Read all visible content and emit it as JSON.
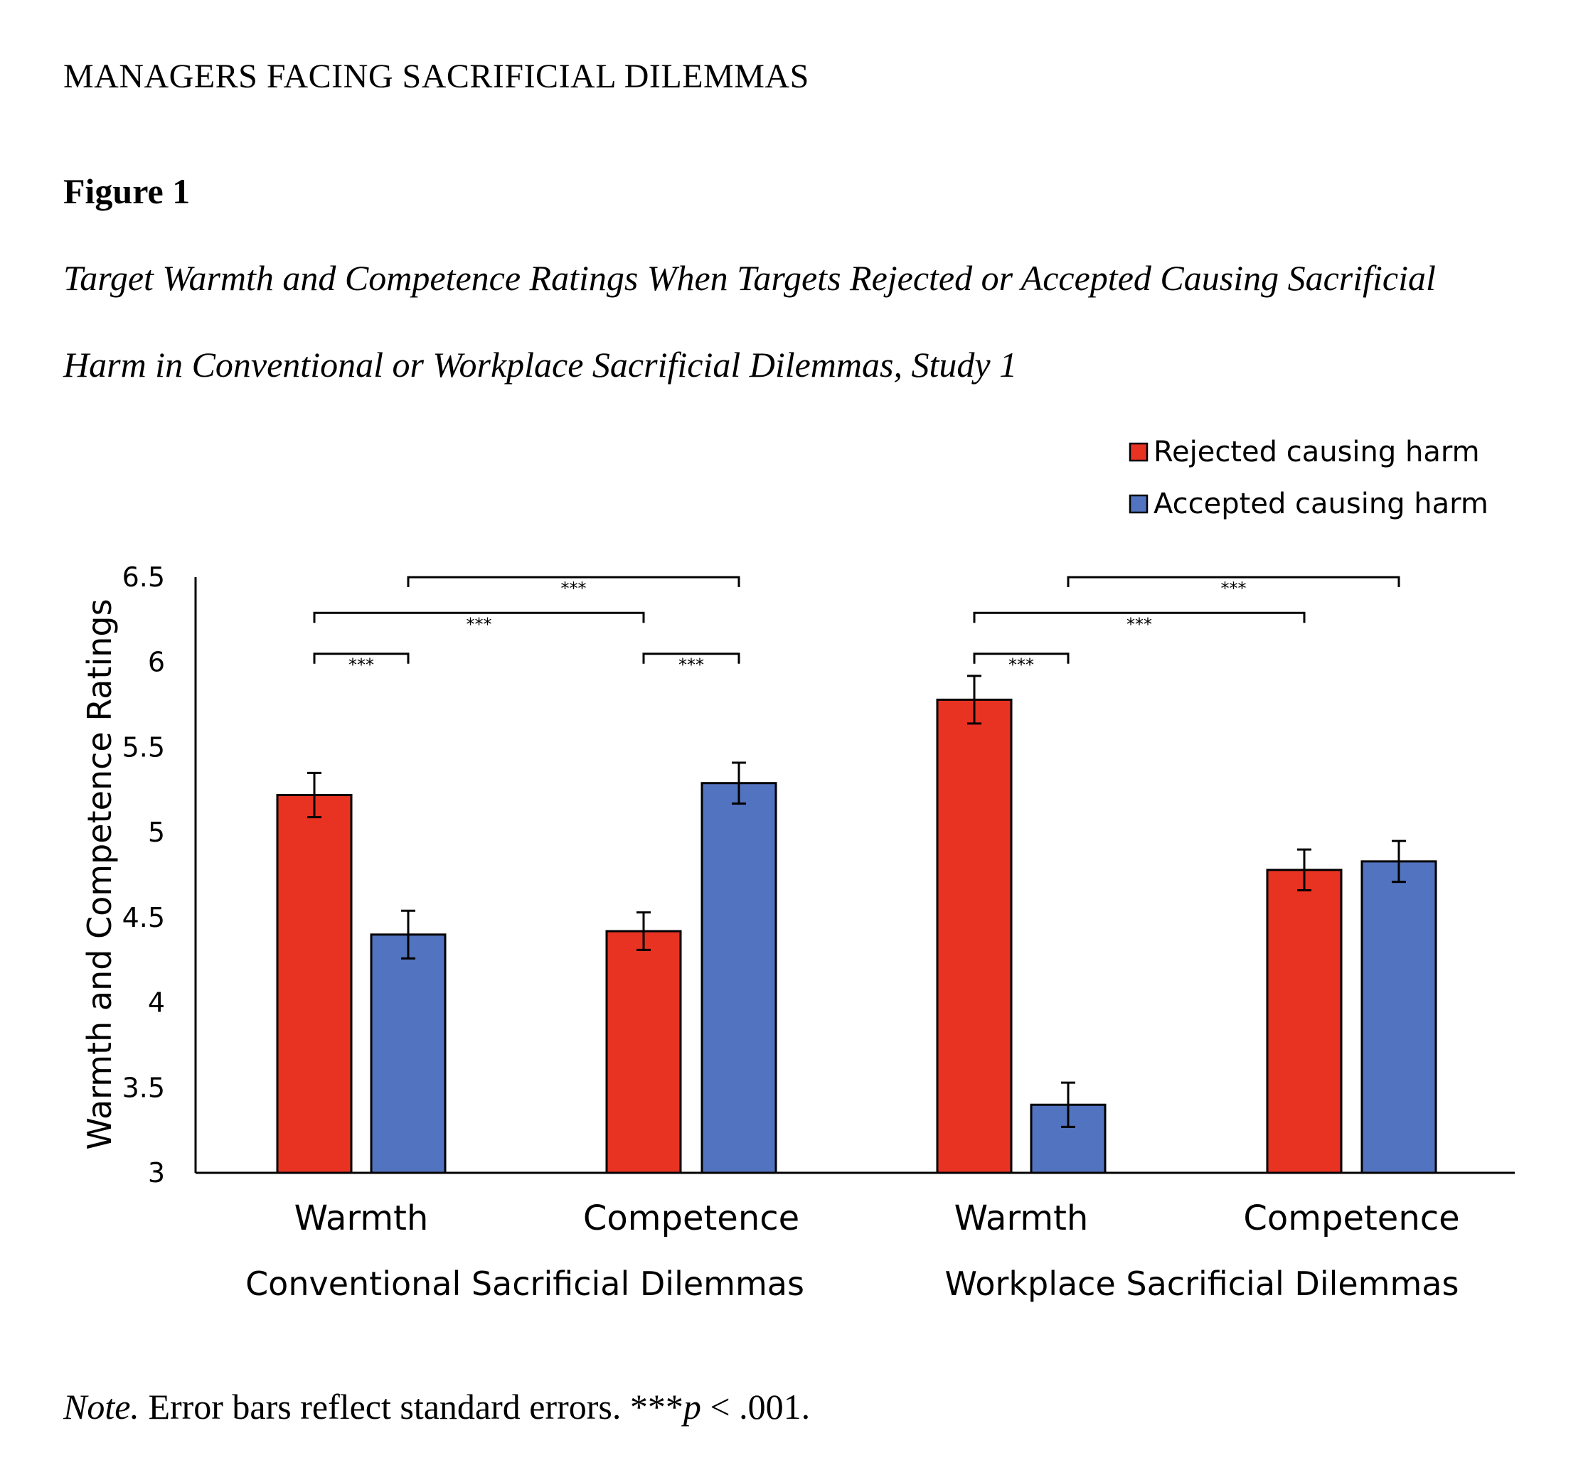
{
  "page": {
    "running_head": "MANAGERS FACING SACRIFICIAL DILEMMAS",
    "figure_label": "Figure 1",
    "figure_title_line1": "Target Warmth and Competence Ratings When Targets Rejected or Accepted Causing Sacrificial",
    "figure_title_line2": "Harm in Conventional or Workplace Sacrificial Dilemmas, Study 1",
    "note_label": "Note.",
    "note_text": " Error bars reflect standard errors. ***",
    "note_p": "p",
    "note_tail": " < .001."
  },
  "chart_data": {
    "type": "bar",
    "title": "",
    "ylabel": "Warmth and Competence Ratings",
    "xlabel": "",
    "ylim": [
      3,
      6.5
    ],
    "yticks": [
      3,
      3.5,
      4,
      4.5,
      5,
      5.5,
      6,
      6.5
    ],
    "ytick_labels": [
      "3",
      "3.5",
      "4",
      "4.5",
      "5",
      "5.5",
      "6",
      "6.5"
    ],
    "groups": [
      {
        "name": "Conventional Sacrificial Dilemmas",
        "categories": [
          "Warmth",
          "Competence"
        ]
      },
      {
        "name": "Workplace Sacrificial Dilemmas",
        "categories": [
          "Warmth",
          "Competence"
        ]
      }
    ],
    "categories": [
      "Warmth",
      "Competence",
      "Warmth",
      "Competence"
    ],
    "series": [
      {
        "name": "Rejected causing harm",
        "color": "#e83323",
        "values": [
          5.22,
          4.42,
          5.78,
          4.78
        ],
        "errors": [
          0.13,
          0.11,
          0.14,
          0.12
        ]
      },
      {
        "name": "Accepted causing harm",
        "color": "#5273bf",
        "values": [
          4.4,
          5.29,
          3.4,
          4.83
        ],
        "errors": [
          0.14,
          0.12,
          0.13,
          0.12
        ]
      }
    ],
    "legend": {
      "position": "top-right"
    },
    "grid": false,
    "significance": [
      {
        "from": [
          0,
          0
        ],
        "to": [
          0,
          1
        ],
        "label": "***",
        "level": 6.05
      },
      {
        "from": [
          1,
          0
        ],
        "to": [
          1,
          1
        ],
        "label": "***",
        "level": 6.05
      },
      {
        "from": [
          0,
          0
        ],
        "to": [
          1,
          0
        ],
        "label": "***",
        "level": 6.29
      },
      {
        "from": [
          0,
          1
        ],
        "to": [
          1,
          1
        ],
        "label": "***",
        "level": 6.5
      },
      {
        "from": [
          2,
          0
        ],
        "to": [
          2,
          1
        ],
        "label": "***",
        "level": 6.05
      },
      {
        "from": [
          2,
          0
        ],
        "to": [
          3,
          0
        ],
        "label": "***",
        "level": 6.29
      },
      {
        "from": [
          2,
          1
        ],
        "to": [
          3,
          1
        ],
        "label": "***",
        "level": 6.5
      }
    ]
  }
}
